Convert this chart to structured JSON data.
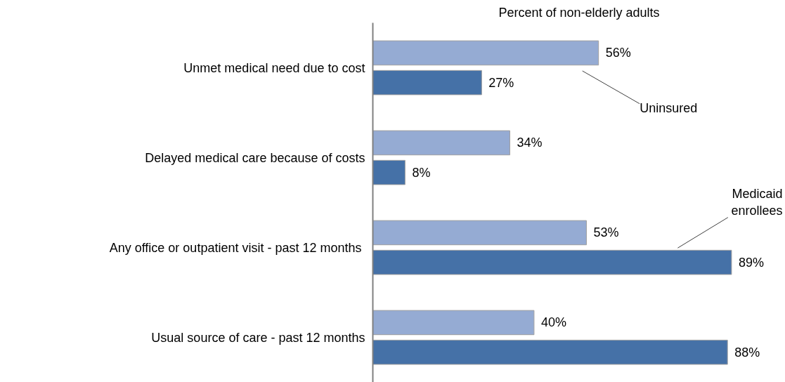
{
  "chart_data": {
    "type": "bar",
    "orientation": "horizontal",
    "title": "Percent of non-elderly adults",
    "categories": [
      "Unmet medical need due to cost",
      "Delayed medical care because of costs",
      "Any office or outpatient visit  - past 12 months",
      "Usual source of care - past 12 months"
    ],
    "series": [
      {
        "name": "Uninsured",
        "color": "#95abd3",
        "values": [
          56,
          34,
          53,
          40
        ],
        "value_labels": [
          "56%",
          "34%",
          "53%",
          "40%"
        ]
      },
      {
        "name": "Medicaid enrollees",
        "color": "#4571a7",
        "values": [
          27,
          8,
          89,
          88
        ],
        "value_labels": [
          "27%",
          "8%",
          "89%",
          "88%"
        ]
      }
    ],
    "grid": false,
    "legend": false
  }
}
